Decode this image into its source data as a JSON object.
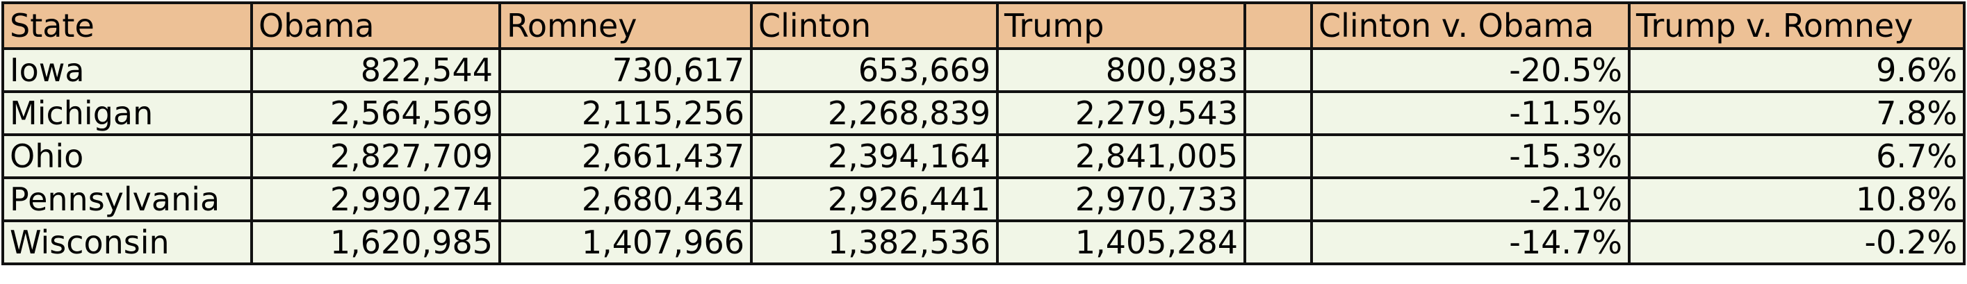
{
  "table": {
    "columns": [
      "State",
      "Obama",
      "Romney",
      "Clinton",
      "Trump",
      "",
      "Clinton v. Obama",
      "Trump v. Romney"
    ],
    "rows": [
      {
        "state": "Iowa",
        "obama": "822,544",
        "romney": "730,617",
        "clinton": "653,669",
        "trump": "800,983",
        "clinton_v_obama": "-20.5%",
        "trump_v_romney": "9.6%"
      },
      {
        "state": "Michigan",
        "obama": "2,564,569",
        "romney": "2,115,256",
        "clinton": "2,268,839",
        "trump": "2,279,543",
        "clinton_v_obama": "-11.5%",
        "trump_v_romney": "7.8%"
      },
      {
        "state": "Ohio",
        "obama": "2,827,709",
        "romney": "2,661,437",
        "clinton": "2,394,164",
        "trump": "2,841,005",
        "clinton_v_obama": "-15.3%",
        "trump_v_romney": "6.7%"
      },
      {
        "state": "Pennsylvania",
        "obama": "2,990,274",
        "romney": "2,680,434",
        "clinton": "2,926,441",
        "trump": "2,970,733",
        "clinton_v_obama": "-2.1%",
        "trump_v_romney": "10.8%"
      },
      {
        "state": "Wisconsin",
        "obama": "1,620,985",
        "romney": "1,407,966",
        "clinton": "1,382,536",
        "trump": "1,405,284",
        "clinton_v_obama": "-14.7%",
        "trump_v_romney": "-0.2%"
      }
    ]
  },
  "colors": {
    "header_bg": "#edc196",
    "row_bg": "#f1f6e7",
    "border": "#111111"
  }
}
